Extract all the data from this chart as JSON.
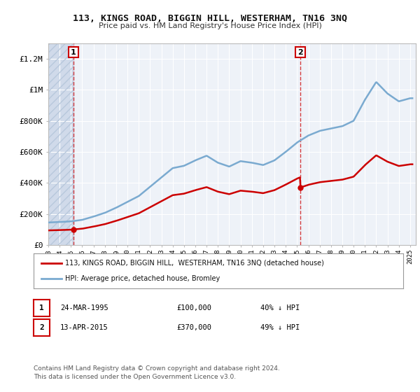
{
  "title": "113, KINGS ROAD, BIGGIN HILL, WESTERHAM, TN16 3NQ",
  "subtitle": "Price paid vs. HM Land Registry's House Price Index (HPI)",
  "background_color": "#ffffff",
  "plot_bg_color": "#eef2f8",
  "hatch_color": "#d0daea",
  "grid_color": "#ffffff",
  "red_line_color": "#cc0000",
  "blue_line_color": "#7aaad0",
  "sale1_year": 1995.23,
  "sale1_price": 100000,
  "sale2_year": 2015.28,
  "sale2_price": 370000,
  "legend_entry1": "113, KINGS ROAD, BIGGIN HILL,  WESTERHAM, TN16 3NQ (detached house)",
  "legend_entry2": "HPI: Average price, detached house, Bromley",
  "table_row1": [
    "1",
    "24-MAR-1995",
    "£100,000",
    "40% ↓ HPI"
  ],
  "table_row2": [
    "2",
    "13-APR-2015",
    "£370,000",
    "49% ↓ HPI"
  ],
  "footer": "Contains HM Land Registry data © Crown copyright and database right 2024.\nThis data is licensed under the Open Government Licence v3.0.",
  "ylim": [
    0,
    1300000
  ],
  "xlim_start": 1993.0,
  "xlim_end": 2025.5,
  "years_hpi": [
    1993,
    1994,
    1995,
    1996,
    1997,
    1998,
    1999,
    2000,
    2001,
    2002,
    2003,
    2004,
    2005,
    2006,
    2007,
    2008,
    2009,
    2010,
    2011,
    2012,
    2013,
    2014,
    2015,
    2016,
    2017,
    2018,
    2019,
    2020,
    2021,
    2022,
    2023,
    2024,
    2025
  ],
  "hpi_values": [
    145000,
    148000,
    152000,
    162000,
    183000,
    207000,
    240000,
    278000,
    315000,
    375000,
    435000,
    495000,
    510000,
    545000,
    575000,
    530000,
    505000,
    540000,
    530000,
    515000,
    545000,
    600000,
    660000,
    705000,
    735000,
    750000,
    765000,
    800000,
    935000,
    1050000,
    975000,
    925000,
    945000
  ]
}
